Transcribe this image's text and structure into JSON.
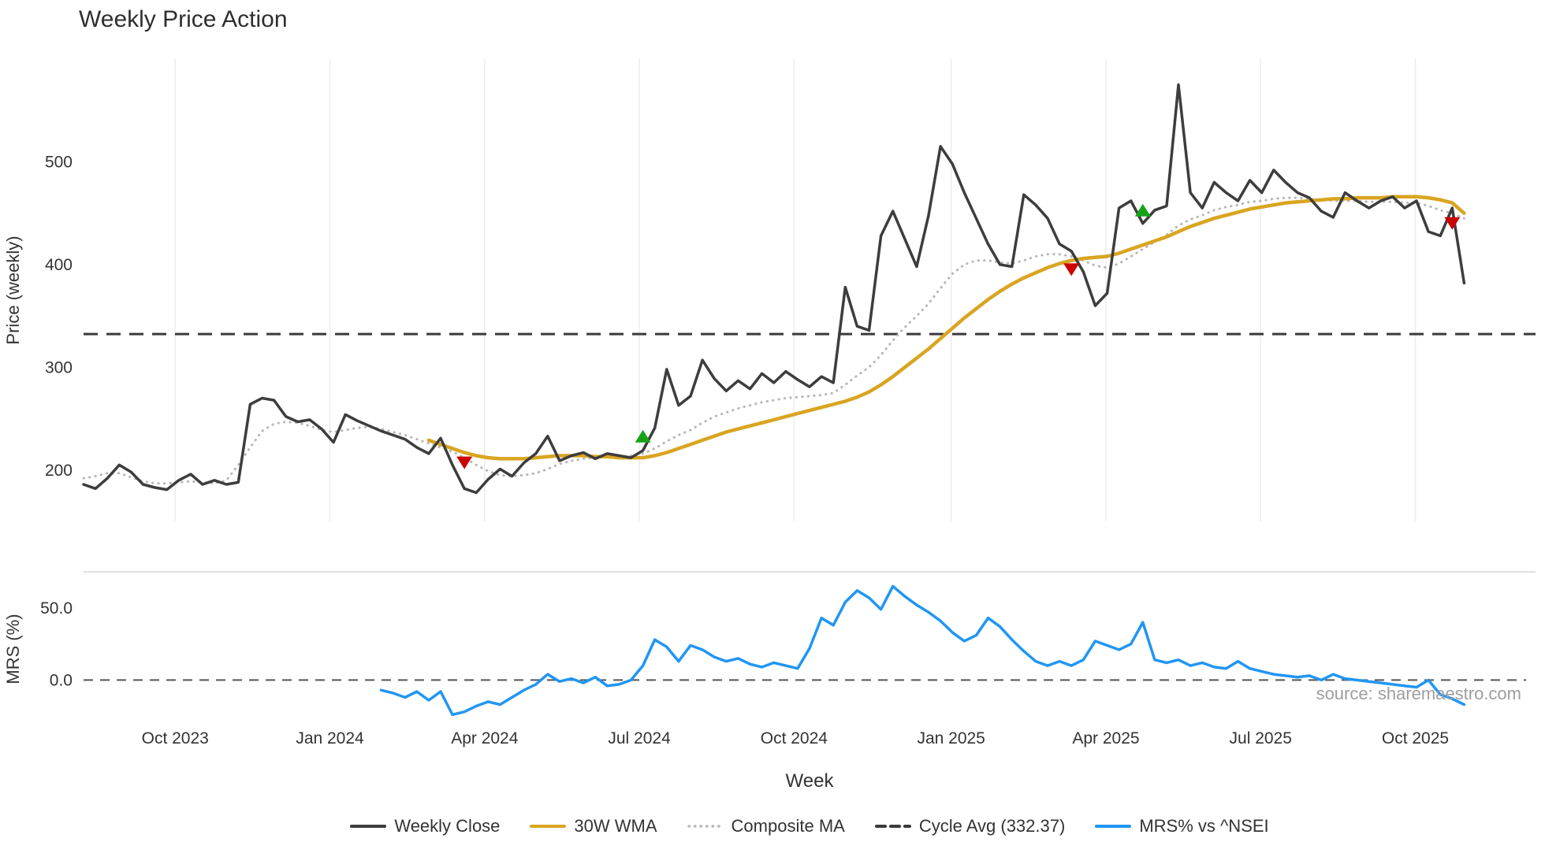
{
  "title": "Weekly Price Action",
  "xlabel": "Week",
  "source_text": "source: sharemaestro.com",
  "colors": {
    "close": "#3d3d3d",
    "wma": "#d9a521",
    "composite": "#b8b8b8",
    "cycle": "#3a3a3a",
    "mrs": "#2196f3",
    "buy": "#17a317",
    "sell": "#cc0000",
    "grid": "#ececec",
    "zero_line": "#555555",
    "panel_border": "#d8d8d8"
  },
  "legend": {
    "items": [
      {
        "label": "Weekly Close",
        "style": "solid",
        "color": "#3d3d3d"
      },
      {
        "label": "30W WMA",
        "style": "solid",
        "color": "#d9a521"
      },
      {
        "label": "Composite MA",
        "style": "dotted",
        "color": "#b8b8b8"
      },
      {
        "label": "Cycle Avg (332.37)",
        "style": "dashed",
        "color": "#3a3a3a"
      },
      {
        "label": "MRS% vs ^NSEI",
        "style": "solid",
        "color": "#2196f3"
      }
    ]
  },
  "chart_data": {
    "type": "line",
    "title": "Weekly Price Action",
    "xlabel": "Week",
    "x_unit": "week_index",
    "x_domain": [
      0,
      122
    ],
    "grid": "vertical-light",
    "legend_position": "bottom-center",
    "xticks": [
      {
        "pos": 7.7,
        "label": "Oct 2023"
      },
      {
        "pos": 20.7,
        "label": "Jan 2024"
      },
      {
        "pos": 33.7,
        "label": "Apr 2024"
      },
      {
        "pos": 46.7,
        "label": "Jul 2024"
      },
      {
        "pos": 59.7,
        "label": "Oct 2024"
      },
      {
        "pos": 72.9,
        "label": "Jan 2025"
      },
      {
        "pos": 85.9,
        "label": "Apr 2025"
      },
      {
        "pos": 98.9,
        "label": "Jul 2025"
      },
      {
        "pos": 111.9,
        "label": "Oct 2025"
      }
    ],
    "panels": [
      {
        "ylabel": "Price (weekly)",
        "ylim": [
          150,
          600
        ],
        "yticks": [
          {
            "value": 200,
            "label": "200"
          },
          {
            "value": 300,
            "label": "300"
          },
          {
            "value": 400,
            "label": "400"
          },
          {
            "value": 500,
            "label": "500"
          }
        ],
        "hline": {
          "name": "Cycle Avg",
          "value": 332.37,
          "style": "dashed",
          "color": "#3a3a3a"
        },
        "series": [
          {
            "name": "Composite MA",
            "color": "#b8b8b8",
            "dash": "dotted",
            "width": 3,
            "start_index": 0,
            "values": [
              192,
              194,
              197,
              197,
              193,
              189,
              187,
              187,
              188,
              189,
              188,
              187,
              190,
              205,
              222,
              238,
              245,
              247,
              246,
              243,
              239,
              237,
              239,
              241,
              242,
              240,
              237,
              234,
              230,
              226,
              222,
              218,
              212,
              205,
              199,
              195,
              194,
              195,
              197,
              201,
              206,
              209,
              211,
              212,
              213,
              213,
              214,
              216,
              221,
              228,
              234,
              239,
              246,
              252,
              256,
              260,
              263,
              266,
              268,
              270,
              271,
              272,
              273,
              275,
              283,
              292,
              300,
              312,
              326,
              339,
              350,
              362,
              377,
              391,
              400,
              404,
              404,
              402,
              401,
              404,
              408,
              410,
              410,
              408,
              404,
              399,
              397,
              401,
              408,
              415,
              422,
              429,
              438,
              444,
              448,
              453,
              456,
              458,
              461,
              462,
              464,
              465,
              465,
              464,
              463,
              462,
              462,
              462,
              461,
              461,
              461,
              460,
              460,
              457,
              453,
              450,
              445
            ]
          },
          {
            "name": "30W WMA",
            "color": "#d9a521",
            "dash": "solid",
            "width": 4.5,
            "start_index": 29,
            "values": [
              229,
              225,
              221,
              217,
              214,
              212,
              211,
              211,
              211,
              212,
              213,
              214,
              214,
              214,
              213,
              213,
              212,
              212,
              212,
              214,
              217,
              221,
              225,
              229,
              233,
              237,
              240,
              243,
              246,
              249,
              252,
              255,
              258,
              261,
              264,
              267,
              271,
              276,
              283,
              291,
              300,
              309,
              318,
              328,
              338,
              348,
              357,
              366,
              374,
              381,
              387,
              392,
              397,
              401,
              404,
              406,
              407,
              408,
              411,
              415,
              419,
              423,
              427,
              432,
              437,
              441,
              445,
              448,
              451,
              454,
              456,
              458,
              460,
              461,
              462,
              463,
              464,
              464,
              465,
              465,
              465,
              466,
              466,
              466,
              465,
              463,
              460,
              450
            ]
          },
          {
            "name": "Weekly Close",
            "color": "#3d3d3d",
            "dash": "solid",
            "width": 3.5,
            "start_index": 0,
            "values": [
              186,
              182,
              192,
              205,
              198,
              186,
              183,
              181,
              190,
              196,
              186,
              190,
              186,
              188,
              264,
              270,
              268,
              252,
              247,
              249,
              240,
              227,
              254,
              248,
              243,
              238,
              234,
              230,
              222,
              216,
              231,
              205,
              182,
              178,
              191,
              201,
              194,
              207,
              216,
              233,
              209,
              214,
              217,
              211,
              216,
              214,
              212,
              219,
              241,
              298,
              263,
              272,
              307,
              289,
              277,
              287,
              279,
              294,
              285,
              296,
              288,
              281,
              291,
              285,
              378,
              340,
              336,
              428,
              452,
              425,
              398,
              448,
              515,
              498,
              470,
              445,
              420,
              400,
              398,
              468,
              458,
              445,
              420,
              413,
              393,
              360,
              372,
              455,
              462,
              440,
              453,
              457,
              575,
              470,
              455,
              480,
              470,
              462,
              482,
              470,
              492,
              480,
              470,
              465,
              452,
              446,
              470,
              462,
              455,
              462,
              466,
              455,
              462,
              432,
              428,
              455,
              382
            ]
          }
        ],
        "markers": [
          {
            "type": "sell",
            "index": 32,
            "value": 207
          },
          {
            "type": "buy",
            "index": 47,
            "value": 233
          },
          {
            "type": "sell",
            "index": 83,
            "value": 395
          },
          {
            "type": "buy",
            "index": 89,
            "value": 453
          },
          {
            "type": "sell",
            "index": 115,
            "value": 440
          }
        ]
      },
      {
        "ylabel": "MRS (%)",
        "ylim": [
          -32,
          75
        ],
        "yticks": [
          {
            "value": 50,
            "label": "50.0"
          },
          {
            "value": 0,
            "label": "0.0"
          }
        ],
        "hline": {
          "name": "Zero",
          "value": 0,
          "style": "dashed",
          "color": "#555555"
        },
        "series": [
          {
            "name": "MRS% vs ^NSEI",
            "color": "#2196f3",
            "dash": "solid",
            "width": 3.5,
            "start_index": 25,
            "values": [
              -7,
              -9,
              -12,
              -8,
              -14,
              -8,
              -24,
              -22,
              -18,
              -15,
              -17,
              -12,
              -7,
              -3,
              4,
              -1,
              1,
              -2,
              2,
              -4,
              -3,
              0,
              10,
              28,
              23,
              13,
              24,
              21,
              16,
              13,
              15,
              11,
              9,
              12,
              10,
              8,
              22,
              43,
              38,
              54,
              62,
              57,
              49,
              65,
              58,
              52,
              47,
              41,
              33,
              27,
              31,
              43,
              37,
              28,
              20,
              13,
              10,
              13,
              10,
              14,
              27,
              24,
              21,
              25,
              40,
              14,
              12,
              14,
              10,
              12,
              9,
              8,
              13,
              8,
              6,
              4,
              3,
              2,
              3,
              0,
              4,
              1,
              0,
              -1,
              -2,
              -3,
              -4,
              -5,
              0,
              -10,
              -13,
              -17
            ]
          }
        ]
      }
    ]
  }
}
